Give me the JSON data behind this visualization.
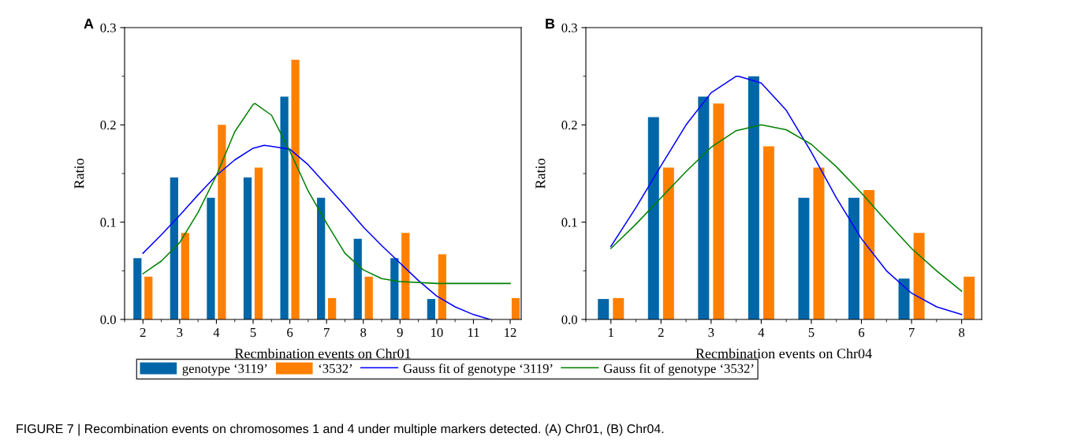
{
  "chart_data": [
    {
      "type": "bar",
      "xlabel": "Recmbination events on Chr01",
      "ylabel": "Ratio",
      "x": [
        2,
        3,
        4,
        5,
        6,
        7,
        8,
        9,
        10,
        11,
        12
      ],
      "xlim": [
        1.5,
        12.3
      ],
      "xticks": [
        2,
        3,
        4,
        5,
        6,
        7,
        8,
        9,
        10,
        11,
        12
      ],
      "ylim": [
        0,
        0.3
      ],
      "yticks": [
        {
          "value": 0,
          "label": "0.0"
        },
        0.1,
        0.2,
        0.3
      ],
      "grid": false,
      "legend": "bottom",
      "annotations": [
        "A",
        "FIGURE 7 | Recombination events on chromosomes 1 and 4 under multiple markers detected. (A) Chr01, (B) Chr04."
      ],
      "series": [
        {
          "name": "genotype ‘3119’",
          "color": "#0066a8",
          "values": [
            0.063,
            0.146,
            0.125,
            0.146,
            0.229,
            0.125,
            0.083,
            0.063,
            0.021,
            null,
            null
          ]
        },
        {
          "name": "‘3532’",
          "color": "#ff8000",
          "values": [
            0.044,
            0.089,
            0.2,
            0.156,
            0.267,
            0.022,
            0.044,
            0.089,
            0.067,
            null,
            0.022
          ]
        },
        {
          "type": "line",
          "name": "Gauss fit of genotype ‘3119’",
          "color": "#0000ff",
          "x": [
            2,
            2.5,
            3,
            3.5,
            4,
            4.5,
            5,
            5.3,
            5.5,
            6,
            6.5,
            7,
            7.5,
            8,
            8.5,
            9,
            9.5,
            10,
            10.5,
            11,
            11.45
          ],
          "values": [
            0.068,
            0.087,
            0.107,
            0.128,
            0.148,
            0.164,
            0.176,
            0.179,
            0.178,
            0.175,
            0.159,
            0.138,
            0.117,
            0.095,
            0.076,
            0.058,
            0.04,
            0.024,
            0.013,
            0.005,
            0.0
          ]
        },
        {
          "type": "line",
          "name": "Gauss fit of genotype ‘3532’",
          "color": "#008000",
          "x": [
            2,
            2.5,
            3,
            3.5,
            4,
            4.5,
            5,
            5.05,
            5.5,
            6,
            6.5,
            7,
            7.5,
            8,
            8.5,
            9,
            10,
            11,
            12
          ],
          "values": [
            0.047,
            0.06,
            0.079,
            0.11,
            0.148,
            0.193,
            0.221,
            0.222,
            0.21,
            0.173,
            0.132,
            0.099,
            0.068,
            0.051,
            0.042,
            0.039,
            0.037,
            0.037,
            0.037
          ]
        }
      ]
    },
    {
      "type": "bar",
      "xlabel": "Recmbination events on Chr04",
      "ylabel": "Ratio",
      "x": [
        1,
        2,
        3,
        4,
        5,
        6,
        7,
        8
      ],
      "xlim": [
        0.5,
        8.4
      ],
      "xticks": [
        1,
        2,
        3,
        4,
        5,
        6,
        7,
        8
      ],
      "ylim": [
        0,
        0.3
      ],
      "yticks": [
        {
          "value": 0,
          "label": "0.0"
        },
        0.1,
        0.2,
        0.3
      ],
      "grid": false,
      "annotations": [
        "B"
      ],
      "series": [
        {
          "color": "#0066a8",
          "values": [
            0.021,
            0.208,
            0.229,
            0.25,
            0.125,
            0.125,
            0.042,
            null
          ]
        },
        {
          "color": "#ff8000",
          "values": [
            0.022,
            0.156,
            0.222,
            0.178,
            0.156,
            0.133,
            0.089,
            0.044
          ]
        },
        {
          "type": "line",
          "color": "#0000ff",
          "x": [
            1,
            1.5,
            2,
            2.5,
            3,
            3.5,
            3.55,
            4,
            4.5,
            5,
            5.5,
            6,
            6.5,
            7,
            7.5,
            8
          ],
          "values": [
            0.075,
            0.115,
            0.158,
            0.2,
            0.233,
            0.25,
            0.25,
            0.243,
            0.215,
            0.172,
            0.125,
            0.083,
            0.05,
            0.027,
            0.013,
            0.005
          ]
        },
        {
          "type": "line",
          "color": "#008000",
          "x": [
            1,
            1.5,
            2,
            2.5,
            3,
            3.5,
            4,
            4.5,
            5,
            5.5,
            6,
            6.5,
            7,
            7.5,
            8
          ],
          "values": [
            0.073,
            0.098,
            0.125,
            0.152,
            0.177,
            0.194,
            0.2,
            0.195,
            0.18,
            0.157,
            0.13,
            0.101,
            0.073,
            0.05,
            0.029
          ]
        }
      ]
    }
  ]
}
